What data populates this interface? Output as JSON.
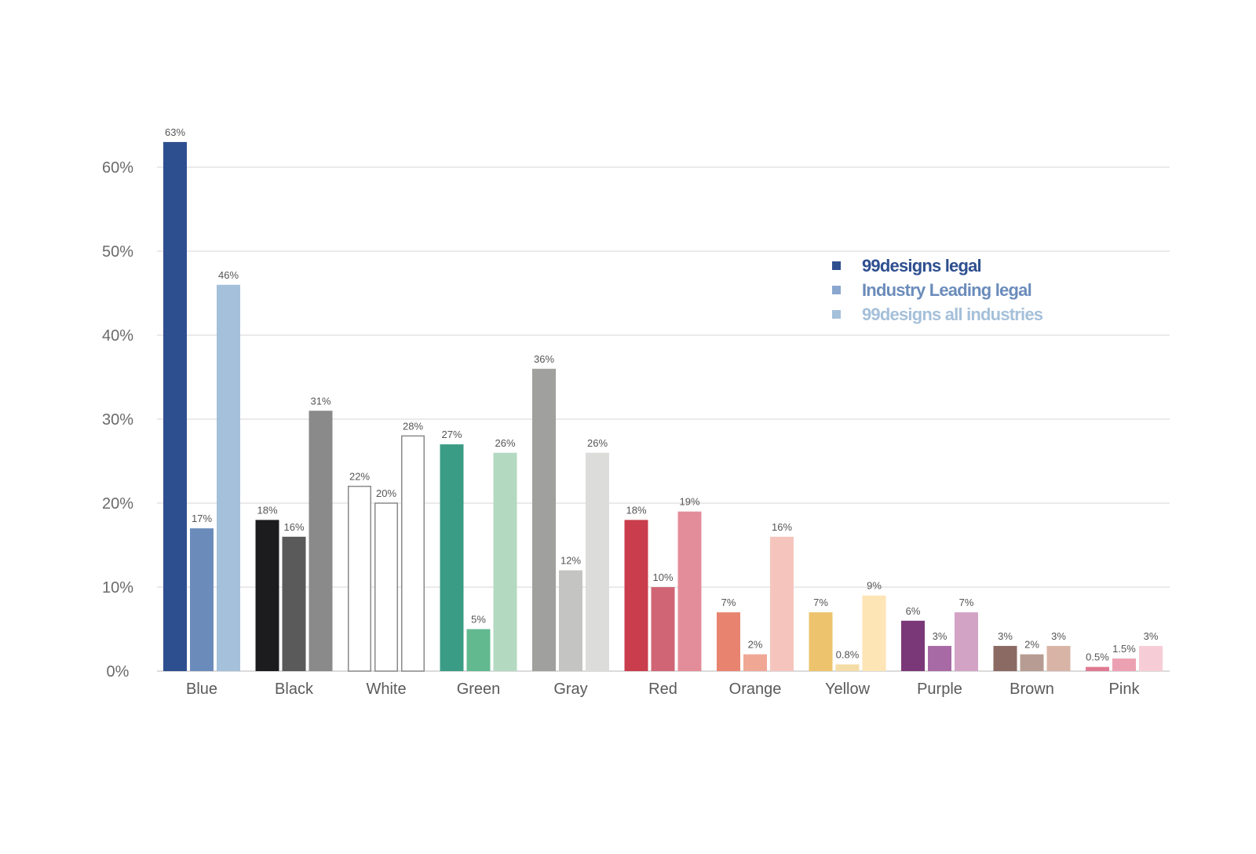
{
  "chart_data": {
    "type": "bar",
    "categories": [
      "Blue",
      "Black",
      "White",
      "Green",
      "Gray",
      "Red",
      "Orange",
      "Yellow",
      "Purple",
      "Brown",
      "Pink"
    ],
    "series": [
      {
        "name": "99designs legal",
        "values": [
          63,
          18,
          22,
          27,
          36,
          18,
          7,
          7,
          6,
          3,
          0.5
        ],
        "labels": [
          "63%",
          "18%",
          "22%",
          "27%",
          "36%",
          "18%",
          "7%",
          "7%",
          "6%",
          "3%",
          "0.5%"
        ]
      },
      {
        "name": "Industry Leading legal",
        "values": [
          17,
          16,
          20,
          5,
          12,
          10,
          2,
          0.8,
          3,
          2,
          1.5
        ],
        "labels": [
          "17%",
          "16%",
          "20%",
          "5%",
          "12%",
          "10%",
          "2%",
          "0.8%",
          "3%",
          "2%",
          "1.5%"
        ]
      },
      {
        "name": "99designs all industries",
        "values": [
          46,
          31,
          28,
          26,
          26,
          19,
          16,
          9,
          7,
          3,
          3
        ],
        "labels": [
          "46%",
          "31%",
          "28%",
          "26%",
          "26%",
          "19%",
          "16%",
          "9%",
          "7%",
          "3%",
          "3%"
        ]
      }
    ],
    "bar_colors": [
      [
        "#2e4f8f",
        "#6b8cbb",
        "#a5c0da"
      ],
      [
        "#1c1c1e",
        "#5a5a5a",
        "#8a8a8a"
      ],
      [
        "#ffffff",
        "#ffffff",
        "#ffffff"
      ],
      [
        "#3a9c84",
        "#62b98f",
        "#b4d9c1"
      ],
      [
        "#a0a09e",
        "#c4c4c2",
        "#dcdcda"
      ],
      [
        "#c93d4c",
        "#d06675",
        "#e48d9a"
      ],
      [
        "#e8836f",
        "#f0a895",
        "#f5c5bd"
      ],
      [
        "#edc46d",
        "#f4dca6",
        "#fde5b6"
      ],
      [
        "#7b3878",
        "#a86aa5",
        "#d3a3c5"
      ],
      [
        "#8a6a62",
        "#b69c92",
        "#d8b4a6"
      ],
      [
        "#e07a93",
        "#eca1b3",
        "#f6cdd6"
      ]
    ],
    "legend_colors": [
      "#2e4f8f",
      "#8aa7cf",
      "#a5c0da"
    ],
    "legend_text_colors": [
      "#2e4f8f",
      "#6b8cbb",
      "#a5c0da"
    ],
    "yticks": [
      "0%",
      "10%",
      "20%",
      "30%",
      "40%",
      "50%",
      "60%"
    ],
    "ylim": [
      0,
      63
    ],
    "grid": true,
    "legend_position": "top-right"
  }
}
